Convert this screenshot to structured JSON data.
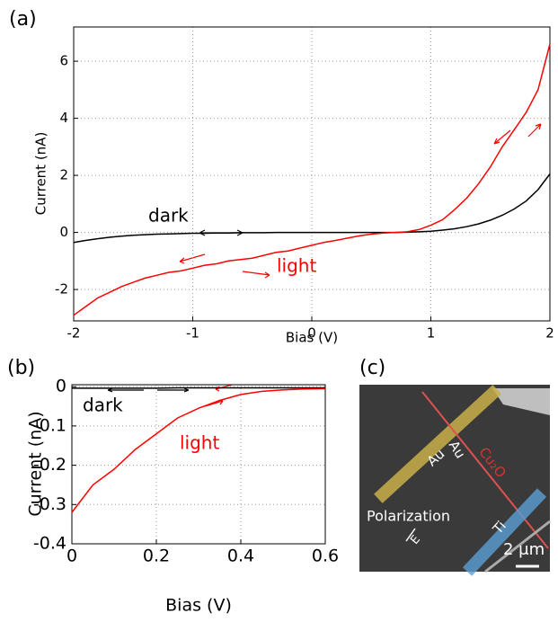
{
  "chart_data": [
    {
      "type": "line",
      "panel_label": "(a)",
      "xlabel": "Bias (V)",
      "ylabel": "Current (nA)",
      "x": [
        -2,
        -1.9,
        -1.8,
        -1.7,
        -1.6,
        -1.5,
        -1.4,
        -1.3,
        -1.2,
        -1.1,
        -1,
        -0.9,
        -0.8,
        -0.7,
        -0.6,
        -0.5,
        -0.4,
        -0.3,
        -0.2,
        -0.1,
        0,
        0.1,
        0.2,
        0.3,
        0.4,
        0.5,
        0.6,
        0.7,
        0.8,
        0.9,
        1,
        1.1,
        1.2,
        1.3,
        1.4,
        1.5,
        1.6,
        1.7,
        1.8,
        1.9,
        2
      ],
      "series": [
        {
          "name": "dark",
          "color": "#000000",
          "values": [
            -0.35,
            -0.28,
            -0.22,
            -0.17,
            -0.13,
            -0.1,
            -0.08,
            -0.06,
            -0.05,
            -0.04,
            -0.03,
            -0.03,
            -0.02,
            -0.02,
            -0.01,
            -0.01,
            -0.01,
            0,
            0,
            0,
            0,
            0,
            0,
            0,
            0,
            0,
            0,
            0,
            0.01,
            0.02,
            0.04,
            0.08,
            0.13,
            0.2,
            0.3,
            0.43,
            0.6,
            0.82,
            1.1,
            1.5,
            2.05
          ]
        },
        {
          "name": "light",
          "color": "#ff0000",
          "values": [
            -2.9,
            -2.6,
            -2.3,
            -2.1,
            -1.9,
            -1.75,
            -1.6,
            -1.5,
            -1.4,
            -1.35,
            -1.25,
            -1.15,
            -1.1,
            -1,
            -0.95,
            -0.9,
            -0.8,
            -0.7,
            -0.65,
            -0.55,
            -0.45,
            -0.35,
            -0.28,
            -0.2,
            -0.12,
            -0.06,
            -0.02,
            0,
            0.02,
            0.1,
            0.25,
            0.45,
            0.8,
            1.2,
            1.7,
            2.3,
            3,
            3.6,
            4.2,
            5,
            6.6
          ]
        }
      ],
      "xlim": [
        -2,
        2
      ],
      "xticks": [
        -2,
        -1,
        0,
        1,
        2
      ],
      "ylim": [
        -3.1,
        7.2
      ],
      "yticks": [
        -2,
        0,
        2,
        4,
        6
      ],
      "grid": true
    },
    {
      "type": "line",
      "panel_label": "(b)",
      "xlabel": "Bias (V)",
      "ylabel": "Current (nA)",
      "x": [
        0,
        0.05,
        0.1,
        0.15,
        0.2,
        0.25,
        0.3,
        0.35,
        0.4,
        0.45,
        0.5,
        0.55,
        0.6
      ],
      "series": [
        {
          "name": "dark",
          "color": "#000000",
          "values": [
            -0.004,
            -0.004,
            -0.004,
            -0.004,
            -0.004,
            -0.003,
            -0.003,
            -0.003,
            -0.003,
            -0.003,
            -0.003,
            -0.003,
            -0.003
          ]
        },
        {
          "name": "light",
          "color": "#ff0000",
          "values": [
            -0.32,
            -0.25,
            -0.21,
            -0.16,
            -0.12,
            -0.08,
            -0.055,
            -0.035,
            -0.02,
            -0.012,
            -0.008,
            -0.006,
            -0.005
          ]
        }
      ],
      "xlim": [
        0,
        0.6
      ],
      "xticks": [
        0,
        0.2,
        0.4,
        0.6
      ],
      "ylim": [
        -0.4,
        0.005
      ],
      "yticks": [
        0,
        -0.1,
        -0.2,
        -0.3,
        -0.4
      ],
      "grid": true
    }
  ],
  "image": {
    "panel_label": "(c)",
    "labels": [
      "Au",
      "Au",
      "Cu₂O",
      "Ti",
      "Polarization",
      "E",
      "2 μm"
    ]
  }
}
